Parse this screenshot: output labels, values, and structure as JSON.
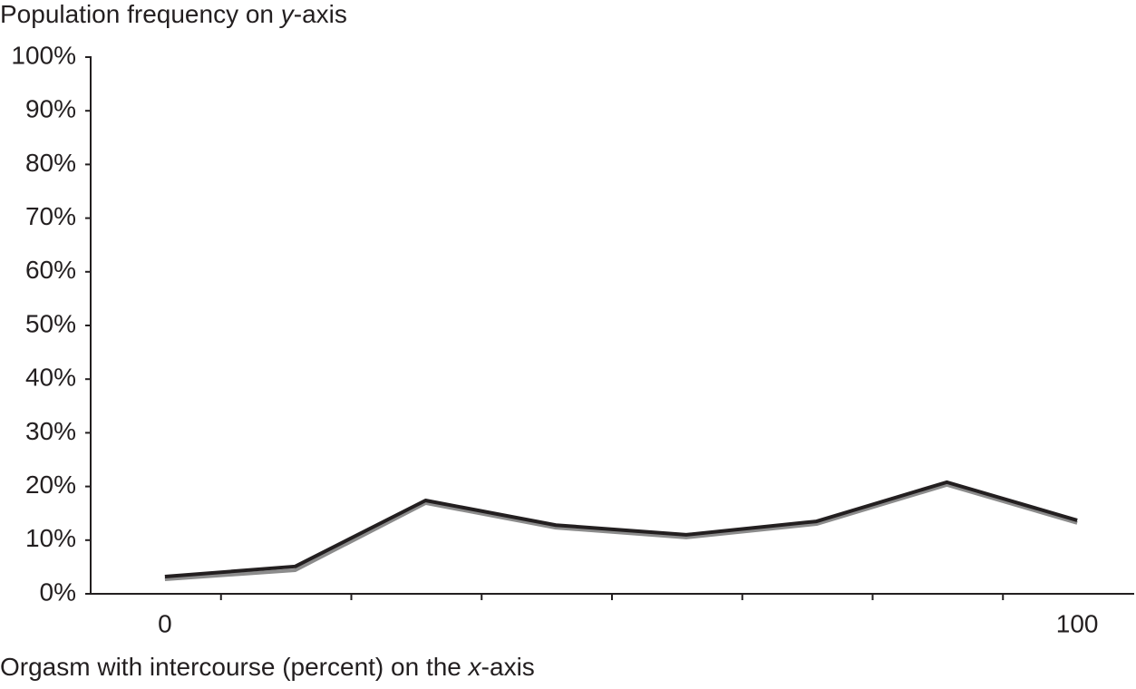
{
  "chart_data": {
    "type": "line",
    "y_label": [
      "Population frequency on ",
      "y",
      "-axis"
    ],
    "x_label": [
      "Orgasm with intercourse (percent) on the ",
      "x",
      "-axis"
    ],
    "categories": [
      "0",
      null,
      null,
      null,
      null,
      null,
      null,
      "100"
    ],
    "series": [
      {
        "color": "#8c8c8c",
        "values": [
          2.7,
          4.4,
          16.9,
          12.3,
          10.5,
          13.0,
          20.3,
          13.2
        ]
      },
      {
        "color": "#231f20",
        "values": [
          3.2,
          5.1,
          17.4,
          12.8,
          11.0,
          13.5,
          20.8,
          13.7
        ]
      }
    ],
    "ylim": [
      0,
      100
    ],
    "yticks": [
      {
        "value": 0,
        "label": "0%"
      },
      {
        "value": 10,
        "label": "10%"
      },
      {
        "value": 20,
        "label": "20%"
      },
      {
        "value": 30,
        "label": "30%"
      },
      {
        "value": 40,
        "label": "40%"
      },
      {
        "value": 50,
        "label": "50%"
      },
      {
        "value": 60,
        "label": "60%"
      },
      {
        "value": 70,
        "label": "70%"
      },
      {
        "value": 80,
        "label": "80%"
      },
      {
        "value": 90,
        "label": "90%"
      },
      {
        "value": 100,
        "label": "100%"
      }
    ],
    "grid": false
  }
}
